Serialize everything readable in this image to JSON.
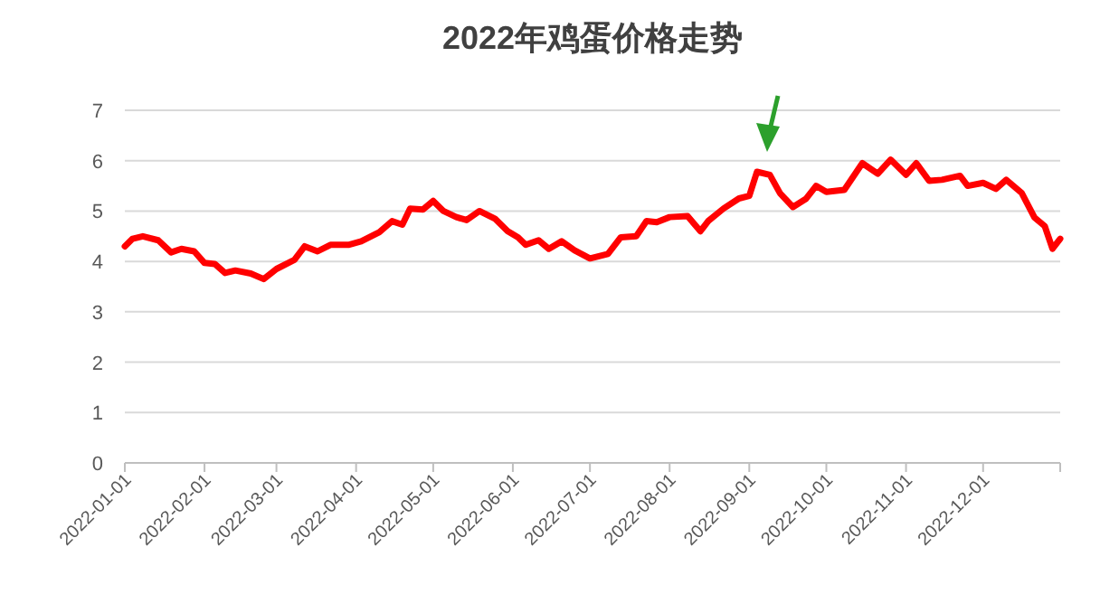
{
  "chart_data": {
    "type": "line",
    "title": "2022年鸡蛋价格走势",
    "x": [
      "2022-01-01",
      "2022-01-04",
      "2022-01-08",
      "2022-01-14",
      "2022-01-19",
      "2022-01-23",
      "2022-01-28",
      "2022-02-01",
      "2022-02-05",
      "2022-02-09",
      "2022-02-13",
      "2022-02-19",
      "2022-02-24",
      "2022-03-01",
      "2022-03-08",
      "2022-03-12",
      "2022-03-17",
      "2022-03-22",
      "2022-03-29",
      "2022-04-03",
      "2022-04-10",
      "2022-04-15",
      "2022-04-19",
      "2022-04-22",
      "2022-04-27",
      "2022-05-01",
      "2022-05-05",
      "2022-05-10",
      "2022-05-14",
      "2022-05-19",
      "2022-05-25",
      "2022-05-30",
      "2022-06-03",
      "2022-06-06",
      "2022-06-11",
      "2022-06-15",
      "2022-06-20",
      "2022-06-25",
      "2022-07-01",
      "2022-07-08",
      "2022-07-13",
      "2022-07-19",
      "2022-07-23",
      "2022-07-27",
      "2022-08-01",
      "2022-08-08",
      "2022-08-13",
      "2022-08-16",
      "2022-08-22",
      "2022-08-28",
      "2022-09-01",
      "2022-09-04",
      "2022-09-09",
      "2022-09-13",
      "2022-09-18",
      "2022-09-23",
      "2022-09-27",
      "2022-10-01",
      "2022-10-08",
      "2022-10-15",
      "2022-10-21",
      "2022-10-26",
      "2022-11-01",
      "2022-11-05",
      "2022-11-10",
      "2022-11-15",
      "2022-11-22",
      "2022-11-25",
      "2022-12-01",
      "2022-12-06",
      "2022-12-10",
      "2022-12-16",
      "2022-12-21",
      "2022-12-25",
      "2022-12-28",
      "2022-12-31"
    ],
    "series": [
      {
        "color": "#ff0000",
        "values": [
          4.3,
          4.45,
          4.5,
          4.42,
          4.18,
          4.25,
          4.2,
          3.97,
          3.95,
          3.77,
          3.82,
          3.76,
          3.65,
          3.85,
          4.03,
          4.3,
          4.2,
          4.33,
          4.33,
          4.4,
          4.58,
          4.8,
          4.73,
          5.05,
          5.03,
          5.2,
          5.0,
          4.88,
          4.82,
          5.0,
          4.85,
          4.6,
          4.48,
          4.33,
          4.42,
          4.25,
          4.4,
          4.22,
          4.06,
          4.15,
          4.48,
          4.5,
          4.8,
          4.78,
          4.88,
          4.9,
          4.6,
          4.8,
          5.05,
          5.25,
          5.3,
          5.78,
          5.72,
          5.35,
          5.08,
          5.24,
          5.5,
          5.38,
          5.42,
          5.95,
          5.74,
          6.02,
          5.72,
          5.95,
          5.6,
          5.62,
          5.7,
          5.5,
          5.56,
          5.44,
          5.62,
          5.36,
          4.87,
          4.7,
          4.25,
          4.45
        ]
      }
    ],
    "xlim": [
      "2022-01-01",
      "2022-12-31"
    ],
    "xticks": [
      "2022-01-01",
      "2022-02-01",
      "2022-03-01",
      "2022-04-01",
      "2022-05-01",
      "2022-06-01",
      "2022-07-01",
      "2022-08-01",
      "2022-09-01",
      "2022-10-01",
      "2022-11-01",
      "2022-12-01",
      {
        "value": "2022-12-31",
        "label": null
      }
    ],
    "ylim": [
      0,
      7
    ],
    "yticks": [
      0,
      1,
      2,
      3,
      4,
      5,
      6,
      7
    ],
    "grid": "y",
    "marker": "none",
    "line_style": "solid"
  }
}
